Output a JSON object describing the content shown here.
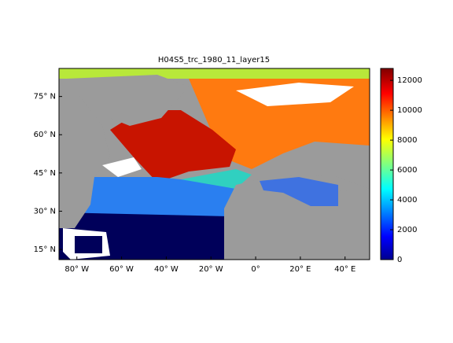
{
  "title": "H04S5_trc_1980_11_layer15",
  "map": {
    "lonlim": [
      -88,
      51
    ],
    "latlim": [
      11,
      86
    ],
    "lon_ticks": [
      {
        "value": -80,
        "label": "80° W"
      },
      {
        "value": -60,
        "label": "60° W"
      },
      {
        "value": -40,
        "label": "40° W"
      },
      {
        "value": -20,
        "label": "20° W"
      },
      {
        "value": 0,
        "label": "0°"
      },
      {
        "value": 20,
        "label": "20° E"
      },
      {
        "value": 40,
        "label": "40° E"
      }
    ],
    "lat_ticks": [
      {
        "value": 75,
        "label": "75° N"
      },
      {
        "value": 60,
        "label": "60° N"
      },
      {
        "value": 45,
        "label": "45° N"
      },
      {
        "value": 30,
        "label": "30° N"
      },
      {
        "value": 15,
        "label": "15° N"
      }
    ]
  },
  "colorbar": {
    "lim": [
      0,
      12800
    ],
    "ticks": [
      0,
      2000,
      4000,
      6000,
      8000,
      10000,
      12000
    ]
  }
}
